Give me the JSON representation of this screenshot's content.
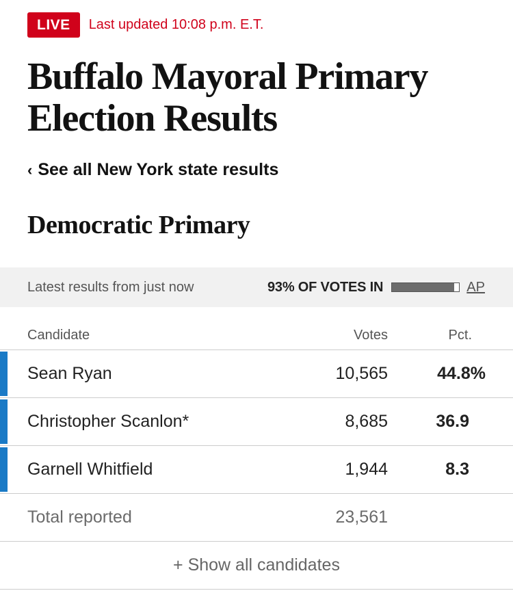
{
  "header": {
    "live_label": "LIVE",
    "updated_text": "Last updated 10:08 p.m. E.T.",
    "title": "Buffalo Mayoral Primary Election Results",
    "back_link": "See all New York state results",
    "back_icon": "chevron-left-icon"
  },
  "race": {
    "title": "Democratic Primary"
  },
  "meta": {
    "latest": "Latest results from just now",
    "reporting_label": "93% OF VOTES IN",
    "reporting_fraction": 0.93,
    "source": "AP"
  },
  "table": {
    "columns": {
      "candidate": "Candidate",
      "votes": "Votes",
      "pct": "Pct."
    },
    "rows": [
      {
        "name": "Sean Ryan",
        "votes": "10,565",
        "pct": "44.8%",
        "color": "#1a7ac6"
      },
      {
        "name": "Christopher Scanlon*",
        "votes": "8,685",
        "pct": "36.9",
        "color": "#1a7ac6"
      },
      {
        "name": "Garnell Whitfield",
        "votes": "1,944",
        "pct": "8.3",
        "color": "#1a7ac6"
      }
    ],
    "total": {
      "label": "Total reported",
      "votes": "23,561"
    },
    "show_all": "+ Show all candidates"
  },
  "colors": {
    "accent_red": "#d0021b",
    "candidate_bar": "#1a7ac6"
  }
}
